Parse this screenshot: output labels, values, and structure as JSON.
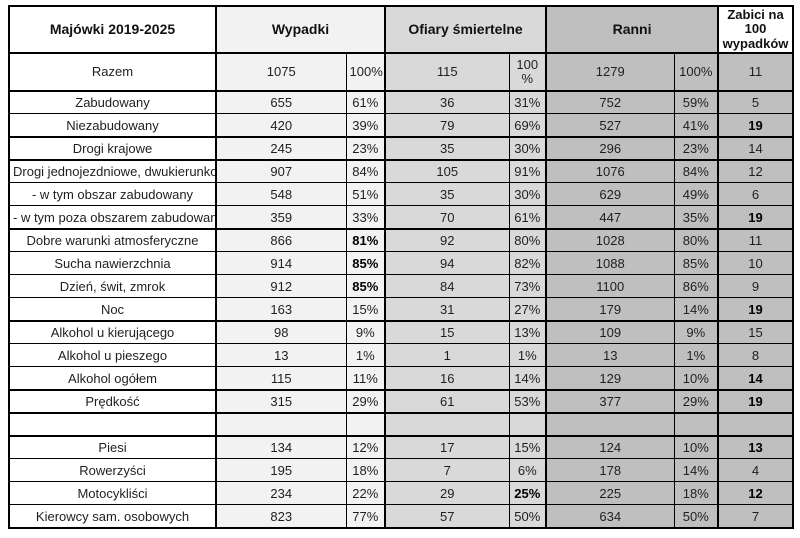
{
  "table": {
    "title": "Majówki 2019-2025",
    "header": {
      "corner": "Majówki 2019-2025",
      "wypadki": "Wypadki",
      "ofiary": "Ofiary śmiertelne",
      "ranni": "Ranni",
      "zabici": "Zabici na 100 wypadków"
    },
    "column_keys": [
      "wypadki-count",
      "wypadki-pct",
      "ofiary-count",
      "ofiary-pct",
      "ranni-count",
      "ranni-pct",
      "zabici-per-100"
    ],
    "rows": [
      {
        "label": "Razem",
        "cells": [
          "1075",
          "100%",
          "115",
          "100 %",
          "1279",
          "100%",
          "11"
        ],
        "bold": [
          false,
          false,
          false,
          false,
          false,
          false,
          false
        ],
        "thick_bottom": true,
        "tall": true,
        "wrap_cols": [
          3
        ]
      },
      {
        "label": "Zabudowany",
        "cells": [
          "655",
          "61%",
          "36",
          "31%",
          "752",
          "59%",
          "5"
        ],
        "bold": [
          false,
          false,
          false,
          false,
          false,
          false,
          false
        ],
        "thick_bottom": false
      },
      {
        "label": "Niezabudowany",
        "cells": [
          "420",
          "39%",
          "79",
          "69%",
          "527",
          "41%",
          "19"
        ],
        "bold": [
          false,
          false,
          false,
          false,
          false,
          false,
          true
        ],
        "thick_bottom": true
      },
      {
        "label": "Drogi krajowe",
        "cells": [
          "245",
          "23%",
          "35",
          "30%",
          "296",
          "23%",
          "14"
        ],
        "bold": [
          false,
          false,
          false,
          false,
          false,
          false,
          false
        ],
        "thick_bottom": true
      },
      {
        "label": "Drogi jednojezdniowe, dwukierunkowe",
        "cells": [
          "907",
          "84%",
          "105",
          "91%",
          "1076",
          "84%",
          "12"
        ],
        "bold": [
          false,
          false,
          false,
          false,
          false,
          false,
          false
        ],
        "thick_bottom": false
      },
      {
        "label": "- w tym obszar zabudowany",
        "cells": [
          "548",
          "51%",
          "35",
          "30%",
          "629",
          "49%",
          "6"
        ],
        "bold": [
          false,
          false,
          false,
          false,
          false,
          false,
          false
        ],
        "thick_bottom": false
      },
      {
        "label": "- w tym poza obszarem zabudowanym",
        "cells": [
          "359",
          "33%",
          "70",
          "61%",
          "447",
          "35%",
          "19"
        ],
        "bold": [
          false,
          false,
          false,
          false,
          false,
          false,
          true
        ],
        "thick_bottom": true
      },
      {
        "label": "Dobre warunki atmosferyczne",
        "cells": [
          "866",
          "81%",
          "92",
          "80%",
          "1028",
          "80%",
          "11"
        ],
        "bold": [
          false,
          true,
          false,
          false,
          false,
          false,
          false
        ],
        "thick_bottom": false
      },
      {
        "label": "Sucha nawierzchnia",
        "cells": [
          "914",
          "85%",
          "94",
          "82%",
          "1088",
          "85%",
          "10"
        ],
        "bold": [
          false,
          true,
          false,
          false,
          false,
          false,
          false
        ],
        "thick_bottom": false
      },
      {
        "label": "Dzień, świt, zmrok",
        "cells": [
          "912",
          "85%",
          "84",
          "73%",
          "1100",
          "86%",
          "9"
        ],
        "bold": [
          false,
          true,
          false,
          false,
          false,
          false,
          false
        ],
        "thick_bottom": false
      },
      {
        "label": "Noc",
        "cells": [
          "163",
          "15%",
          "31",
          "27%",
          "179",
          "14%",
          "19"
        ],
        "bold": [
          false,
          false,
          false,
          false,
          false,
          false,
          true
        ],
        "thick_bottom": true
      },
      {
        "label": "Alkohol u kierującego",
        "cells": [
          "98",
          "9%",
          "15",
          "13%",
          "109",
          "9%",
          "15"
        ],
        "bold": [
          false,
          false,
          false,
          false,
          false,
          false,
          false
        ],
        "thick_bottom": false
      },
      {
        "label": "Alkohol u pieszego",
        "cells": [
          "13",
          "1%",
          "1",
          "1%",
          "13",
          "1%",
          "8"
        ],
        "bold": [
          false,
          false,
          false,
          false,
          false,
          false,
          false
        ],
        "thick_bottom": false
      },
      {
        "label": "Alkohol ogółem",
        "cells": [
          "115",
          "11%",
          "16",
          "14%",
          "129",
          "10%",
          "14"
        ],
        "bold": [
          false,
          false,
          false,
          false,
          false,
          false,
          true
        ],
        "thick_bottom": true
      },
      {
        "label": "Prędkość",
        "cells": [
          "315",
          "29%",
          "61",
          "53%",
          "377",
          "29%",
          "19"
        ],
        "bold": [
          false,
          false,
          false,
          false,
          false,
          false,
          true
        ],
        "thick_bottom": true
      },
      {
        "label": "",
        "cells": [
          "",
          "",
          "",
          "",
          "",
          "",
          ""
        ],
        "bold": [
          false,
          false,
          false,
          false,
          false,
          false,
          false
        ],
        "thick_bottom": true
      },
      {
        "label": "Piesi",
        "cells": [
          "134",
          "12%",
          "17",
          "15%",
          "124",
          "10%",
          "13"
        ],
        "bold": [
          false,
          false,
          false,
          false,
          false,
          false,
          true
        ],
        "thick_bottom": false
      },
      {
        "label": "Rowerzyści",
        "cells": [
          "195",
          "18%",
          "7",
          "6%",
          "178",
          "14%",
          "4"
        ],
        "bold": [
          false,
          false,
          false,
          false,
          false,
          false,
          false
        ],
        "thick_bottom": false
      },
      {
        "label": "Motocykliści",
        "cells": [
          "234",
          "22%",
          "29",
          "25%",
          "225",
          "18%",
          "12"
        ],
        "bold": [
          false,
          false,
          false,
          true,
          false,
          false,
          true
        ],
        "thick_bottom": false
      },
      {
        "label": "Kierowcy sam. osobowych",
        "cells": [
          "823",
          "77%",
          "57",
          "50%",
          "634",
          "50%",
          "7"
        ],
        "bold": [
          false,
          false,
          false,
          false,
          false,
          false,
          false
        ],
        "thick_bottom": false
      }
    ]
  },
  "colors": {
    "wypadki_column": "#f2f2f2",
    "ofiary_column": "#d9d9d9",
    "ranni_column": "#bfbfbf",
    "zabici_column": "#bfbfbf",
    "border": "#000000",
    "text": "#1f1f1f"
  }
}
